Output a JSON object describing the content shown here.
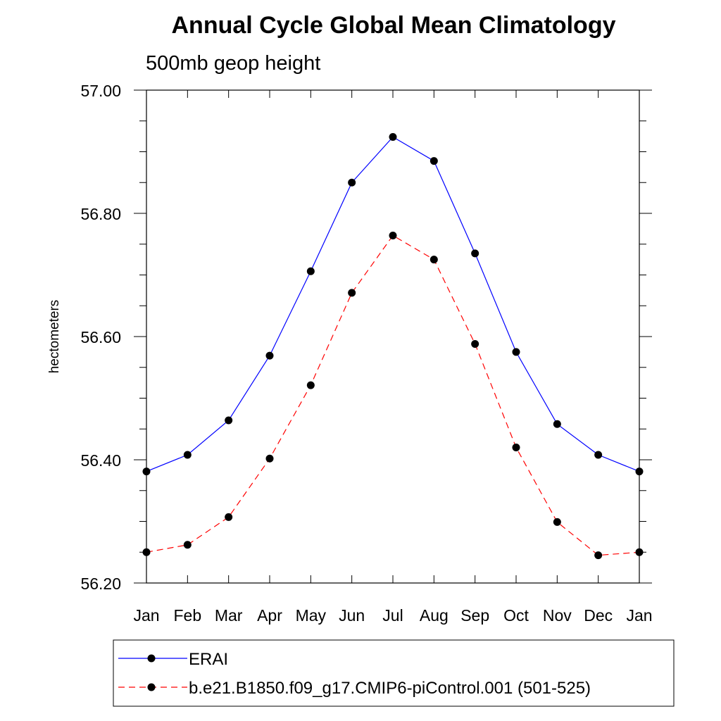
{
  "chart_data": {
    "type": "line",
    "title": "Annual Cycle Global Mean Climatology",
    "subtitle": "500mb geop height",
    "xlabel": "",
    "ylabel": "hectometers",
    "categories": [
      "Jan",
      "Feb",
      "Mar",
      "Apr",
      "May",
      "Jun",
      "Jul",
      "Aug",
      "Sep",
      "Oct",
      "Nov",
      "Dec",
      "Jan"
    ],
    "ylim": [
      56.2,
      57.0
    ],
    "yticks": [
      "56.20",
      "56.40",
      "56.60",
      "56.80",
      "57.00"
    ],
    "series": [
      {
        "name": "ERAI",
        "color": "#0000ff",
        "dash": "solid",
        "values": [
          56.381,
          56.408,
          56.464,
          56.569,
          56.706,
          56.85,
          56.924,
          56.885,
          56.735,
          56.575,
          56.458,
          56.408,
          56.381
        ]
      },
      {
        "name": "b.e21.B1850.f09_g17.CMIP6-piControl.001 (501-525)",
        "color": "#ff0000",
        "dash": "dashed",
        "values": [
          56.25,
          56.262,
          56.307,
          56.402,
          56.521,
          56.671,
          56.764,
          56.725,
          56.588,
          56.42,
          56.299,
          56.245,
          56.25
        ]
      }
    ],
    "grid": false,
    "legend_placement": "bottom"
  }
}
